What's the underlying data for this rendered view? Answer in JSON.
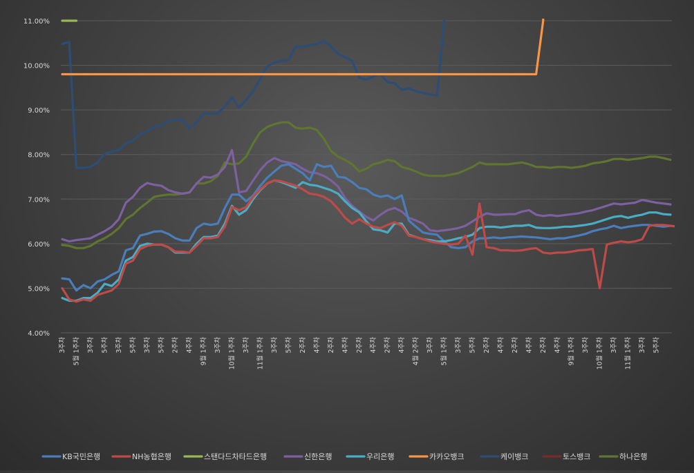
{
  "chart_data": {
    "type": "line",
    "title": "",
    "xlabel": "",
    "ylabel": "",
    "ylim": [
      4.0,
      11.0
    ],
    "y_ticks": [
      "4.00%",
      "5.00%",
      "6.00%",
      "7.00%",
      "8.00%",
      "9.00%",
      "10.00%",
      "11.00%"
    ],
    "x_tick_labels": [
      {
        "i": 0,
        "text": "3주차"
      },
      {
        "i": 2,
        "text": "5월 1주차"
      },
      {
        "i": 4,
        "text": "3주차"
      },
      {
        "i": 6,
        "text": "5주차"
      },
      {
        "i": 8,
        "text": "3주차"
      },
      {
        "i": 10,
        "text": "5주차"
      },
      {
        "i": 12,
        "text": "3주차"
      },
      {
        "i": 14,
        "text": "5주차"
      },
      {
        "i": 16,
        "text": "2주차"
      },
      {
        "i": 18,
        "text": "4주차"
      },
      {
        "i": 20,
        "text": "9월 1주차"
      },
      {
        "i": 22,
        "text": "3주차"
      },
      {
        "i": 24,
        "text": "10월 1주차"
      },
      {
        "i": 26,
        "text": "3주차"
      },
      {
        "i": 28,
        "text": "11월 1주차"
      },
      {
        "i": 30,
        "text": "3주차"
      },
      {
        "i": 32,
        "text": "5주차"
      },
      {
        "i": 34,
        "text": "2주차"
      },
      {
        "i": 36,
        "text": "4주차"
      },
      {
        "i": 38,
        "text": "2주차"
      },
      {
        "i": 40,
        "text": "4주차"
      },
      {
        "i": 42,
        "text": "2주차"
      },
      {
        "i": 44,
        "text": "4주차"
      },
      {
        "i": 46,
        "text": "2주차"
      },
      {
        "i": 48,
        "text": "4주차"
      },
      {
        "i": 50,
        "text": "4월 2주차"
      },
      {
        "i": 52,
        "text": "3주차"
      },
      {
        "i": 54,
        "text": "5월 1주차"
      },
      {
        "i": 56,
        "text": "3주차"
      },
      {
        "i": 58,
        "text": "5주차"
      },
      {
        "i": 60,
        "text": "2주차"
      },
      {
        "i": 62,
        "text": "4주차"
      },
      {
        "i": 64,
        "text": "2주차"
      },
      {
        "i": 66,
        "text": "4주차"
      },
      {
        "i": 68,
        "text": "2주차"
      },
      {
        "i": 70,
        "text": "4주차"
      },
      {
        "i": 72,
        "text": "9월 1주차"
      },
      {
        "i": 74,
        "text": "3주차"
      },
      {
        "i": 76,
        "text": "10월 1주차"
      },
      {
        "i": 78,
        "text": "3주차"
      },
      {
        "i": 80,
        "text": "11월 1주차"
      },
      {
        "i": 82,
        "text": "3주차"
      },
      {
        "i": 84,
        "text": "5주차"
      }
    ],
    "legend_position": "bottom",
    "grid": true,
    "series": [
      {
        "name": "KB국민은행",
        "color": "#4a7ebb",
        "values": [
          5.22,
          5.2,
          4.95,
          5.07,
          5.0,
          5.15,
          5.2,
          5.3,
          5.38,
          5.85,
          5.9,
          6.18,
          6.22,
          6.27,
          6.28,
          6.22,
          6.12,
          6.07,
          6.07,
          6.35,
          6.45,
          6.42,
          6.45,
          6.8,
          7.1,
          7.1,
          6.95,
          7.08,
          7.3,
          7.48,
          7.62,
          7.75,
          7.78,
          7.68,
          7.58,
          7.42,
          7.78,
          7.72,
          7.75,
          7.5,
          7.48,
          7.38,
          7.25,
          7.22,
          7.1,
          7.05,
          7.08,
          7.0,
          7.08,
          6.52,
          6.38,
          6.25,
          6.22,
          6.2,
          6.05,
          5.92,
          5.9,
          5.92,
          6.05,
          6.12,
          6.12,
          6.14,
          6.12,
          6.14,
          6.15,
          6.16,
          6.15,
          6.14,
          6.12,
          6.1,
          6.12,
          6.12,
          6.15,
          6.18,
          6.22,
          6.28,
          6.32,
          6.35,
          6.4,
          6.35,
          6.38,
          6.4,
          6.42,
          6.42,
          6.4,
          6.38,
          6.4
        ]
      },
      {
        "name": "NH농협은행",
        "color": "#be4b48",
        "values": [
          5.0,
          4.75,
          4.7,
          4.75,
          4.72,
          4.85,
          4.9,
          4.95,
          5.1,
          5.55,
          5.62,
          5.88,
          5.95,
          5.98,
          5.98,
          5.92,
          5.82,
          5.82,
          5.8,
          5.95,
          6.12,
          6.12,
          6.15,
          6.38,
          6.82,
          6.75,
          6.82,
          7.05,
          7.22,
          7.35,
          7.42,
          7.4,
          7.35,
          7.3,
          7.22,
          7.12,
          7.1,
          7.05,
          6.95,
          6.78,
          6.58,
          6.45,
          6.55,
          6.45,
          6.38,
          6.35,
          6.42,
          6.48,
          6.4,
          6.18,
          6.15,
          6.1,
          6.05,
          6.02,
          6.0,
          5.98,
          6.0,
          6.18,
          5.75,
          6.9,
          5.92,
          5.9,
          5.85,
          5.85,
          5.84,
          5.85,
          5.88,
          5.9,
          5.8,
          5.78,
          5.8,
          5.8,
          5.82,
          5.85,
          5.86,
          5.88,
          5.0,
          5.98,
          6.02,
          6.05,
          6.03,
          6.05,
          6.1,
          6.4,
          6.42,
          6.42,
          6.4,
          6.38
        ]
      },
      {
        "name": "스탠다드차타드은행",
        "color": "#98b954",
        "values": [
          11.0,
          11.0,
          11.0
        ]
      },
      {
        "name": "신한은행",
        "color": "#7d60a0",
        "values": [
          6.1,
          6.05,
          6.08,
          6.1,
          6.12,
          6.2,
          6.28,
          6.38,
          6.55,
          6.92,
          7.05,
          7.25,
          7.36,
          7.32,
          7.3,
          7.2,
          7.15,
          7.12,
          7.15,
          7.35,
          7.5,
          7.48,
          7.55,
          7.72,
          8.1,
          7.15,
          7.18,
          7.42,
          7.65,
          7.82,
          7.92,
          7.85,
          7.82,
          7.78,
          7.68,
          7.6,
          7.58,
          7.52,
          7.42,
          7.28,
          7.02,
          6.85,
          6.72,
          6.6,
          6.52,
          6.65,
          6.75,
          6.8,
          6.72,
          6.58,
          6.52,
          6.45,
          6.3,
          6.28,
          6.3,
          6.32,
          6.35,
          6.4,
          6.5,
          6.6,
          6.68,
          6.65,
          6.65,
          6.66,
          6.66,
          6.72,
          6.75,
          6.65,
          6.62,
          6.64,
          6.62,
          6.64,
          6.66,
          6.68,
          6.72,
          6.75,
          6.8,
          6.85,
          6.9,
          6.88,
          6.9,
          6.92,
          6.98,
          6.95,
          6.92,
          6.9,
          6.88
        ]
      },
      {
        "name": "우리은행",
        "color": "#4bacc6",
        "values": [
          4.78,
          4.72,
          4.72,
          4.78,
          4.78,
          4.9,
          5.1,
          5.05,
          5.2,
          5.62,
          5.7,
          5.95,
          6.0,
          5.98,
          5.98,
          5.92,
          5.8,
          5.8,
          5.8,
          6.0,
          6.15,
          6.15,
          6.18,
          6.45,
          6.85,
          6.65,
          6.75,
          7.0,
          7.2,
          7.35,
          7.42,
          7.38,
          7.32,
          7.25,
          7.38,
          7.32,
          7.3,
          7.25,
          7.2,
          7.12,
          6.95,
          6.8,
          6.7,
          6.5,
          6.32,
          6.3,
          6.25,
          6.45,
          6.45,
          6.2,
          6.15,
          6.1,
          6.08,
          6.05,
          6.05,
          6.08,
          6.12,
          6.15,
          6.2,
          6.35,
          6.38,
          6.38,
          6.36,
          6.38,
          6.4,
          6.4,
          6.42,
          6.36,
          6.35,
          6.35,
          6.36,
          6.38,
          6.38,
          6.4,
          6.42,
          6.45,
          6.5,
          6.55,
          6.6,
          6.62,
          6.58,
          6.62,
          6.65,
          6.7,
          6.7,
          6.66,
          6.65
        ]
      },
      {
        "name": "카카오뱅크",
        "color": "#f79646",
        "values": [
          9.8,
          9.8,
          9.8,
          9.8,
          9.8,
          9.8,
          9.8,
          9.8,
          9.8,
          9.8,
          9.8,
          9.8,
          9.8,
          9.8,
          9.8,
          9.8,
          9.8,
          9.8,
          9.8,
          9.8,
          9.8,
          9.8,
          9.8,
          9.8,
          9.8,
          9.8,
          9.8,
          9.8,
          9.8,
          9.8,
          9.8,
          9.8,
          9.8,
          9.8,
          9.8,
          9.8,
          9.8,
          9.8,
          9.8,
          9.8,
          9.8,
          9.8,
          9.8,
          9.8,
          9.8,
          9.8,
          9.8,
          9.8,
          9.8,
          9.8,
          9.8,
          9.8,
          9.8,
          9.8,
          9.8,
          9.8,
          9.8,
          9.8,
          9.8,
          9.8,
          9.8,
          9.8,
          9.8,
          9.8,
          9.8,
          9.8,
          9.8,
          9.8,
          11.0
        ]
      },
      {
        "name": "케이뱅크",
        "color": "#2c4d75",
        "values": [
          10.48,
          10.52,
          7.7,
          7.7,
          7.72,
          7.82,
          8.02,
          8.06,
          8.1,
          8.25,
          8.32,
          8.45,
          8.52,
          8.62,
          8.65,
          8.75,
          8.78,
          8.78,
          8.58,
          8.72,
          8.92,
          8.92,
          8.92,
          9.08,
          9.28,
          9.05,
          9.22,
          9.42,
          9.7,
          9.98,
          10.06,
          10.1,
          10.12,
          10.42,
          10.42,
          10.45,
          10.48,
          10.55,
          10.42,
          10.25,
          10.18,
          10.1,
          9.72,
          9.68,
          9.75,
          9.8,
          9.62,
          9.6,
          9.45,
          9.48,
          9.42,
          9.38,
          9.35,
          9.32,
          11.0
        ]
      },
      {
        "name": "토스뱅크",
        "color": "#772c2a",
        "values": []
      },
      {
        "name": "하나은행",
        "color": "#5f7530",
        "values": [
          5.97,
          5.95,
          5.9,
          5.9,
          5.95,
          6.05,
          6.12,
          6.22,
          6.35,
          6.55,
          6.65,
          6.8,
          6.92,
          7.05,
          7.08,
          7.1,
          7.1,
          7.12,
          7.15,
          7.35,
          7.35,
          7.4,
          7.52,
          7.82,
          7.78,
          7.8,
          7.95,
          8.25,
          8.5,
          8.62,
          8.68,
          8.72,
          8.72,
          8.6,
          8.58,
          8.6,
          8.55,
          8.35,
          8.08,
          7.95,
          7.88,
          7.78,
          7.62,
          7.68,
          7.78,
          7.82,
          7.88,
          7.85,
          7.72,
          7.68,
          7.62,
          7.55,
          7.52,
          7.52,
          7.52,
          7.55,
          7.58,
          7.65,
          7.72,
          7.82,
          7.78,
          7.78,
          7.78,
          7.78,
          7.8,
          7.82,
          7.78,
          7.72,
          7.72,
          7.7,
          7.72,
          7.72,
          7.7,
          7.72,
          7.75,
          7.8,
          7.82,
          7.85,
          7.9,
          7.9,
          7.88,
          7.9,
          7.92,
          7.95,
          7.95,
          7.92,
          7.88
        ]
      }
    ]
  }
}
